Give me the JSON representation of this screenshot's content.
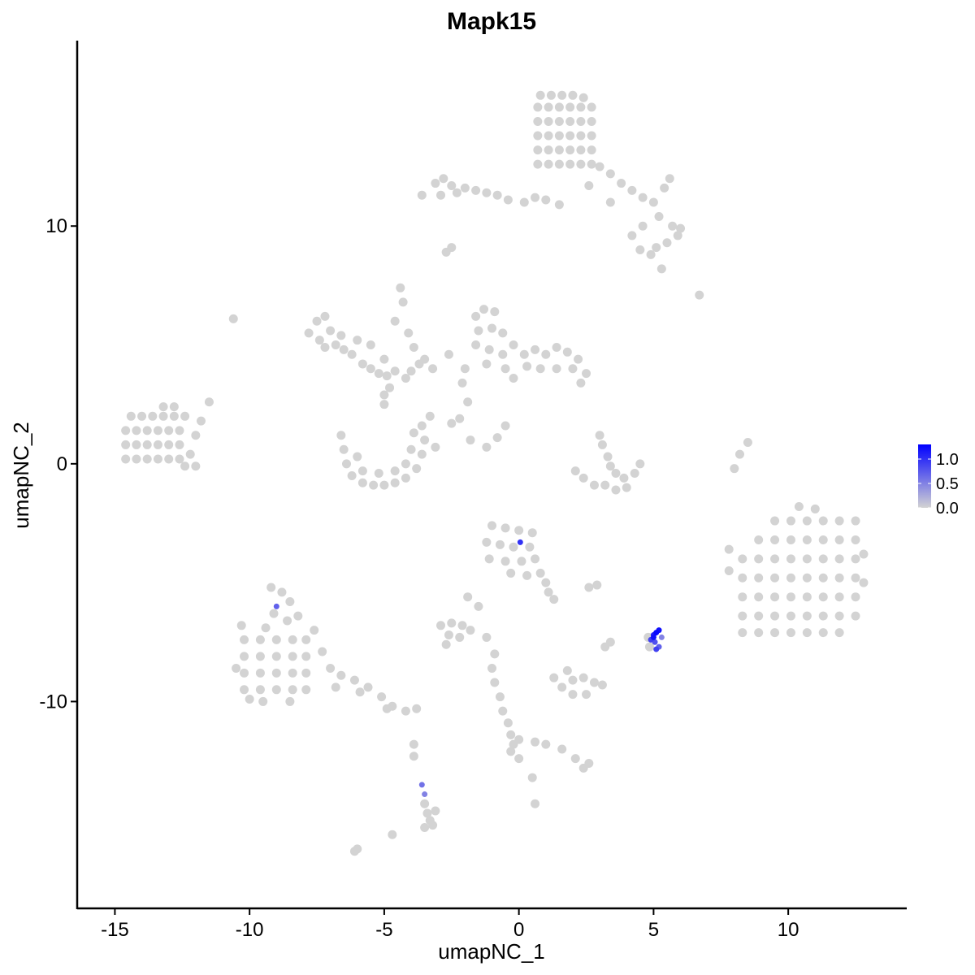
{
  "chart_data": {
    "type": "scatter",
    "title": "Mapk15",
    "xlabel": "umapNC_1",
    "ylabel": "umapNC_2",
    "xlim": [
      -16.4,
      14.4
    ],
    "ylim": [
      -18.7,
      17.8
    ],
    "xticks": [
      -15,
      -10,
      -5,
      0,
      5,
      10
    ],
    "yticks": [
      -10,
      0,
      10
    ],
    "grid": false,
    "color_scale": {
      "low": "#D3D3D3",
      "high": "#0000FF",
      "min": 0,
      "max": 1.3
    },
    "legend": {
      "position": "right",
      "ticks": [
        0.0,
        0.5,
        1.0
      ],
      "tick_labels": [
        "0.0",
        "0.5",
        "1.0"
      ]
    },
    "points_zero": [
      [
        0.7,
        12.6
      ],
      [
        1.1,
        12.6
      ],
      [
        1.5,
        12.6
      ],
      [
        1.9,
        12.6
      ],
      [
        2.3,
        12.6
      ],
      [
        2.7,
        12.6
      ],
      [
        0.7,
        13.2
      ],
      [
        1.1,
        13.2
      ],
      [
        1.5,
        13.2
      ],
      [
        1.9,
        13.2
      ],
      [
        2.3,
        13.2
      ],
      [
        2.7,
        13.2
      ],
      [
        0.7,
        13.8
      ],
      [
        1.1,
        13.8
      ],
      [
        1.5,
        13.8
      ],
      [
        1.9,
        13.8
      ],
      [
        2.3,
        13.8
      ],
      [
        2.7,
        13.8
      ],
      [
        0.7,
        14.4
      ],
      [
        1.1,
        14.4
      ],
      [
        1.5,
        14.4
      ],
      [
        1.9,
        14.4
      ],
      [
        2.3,
        14.4
      ],
      [
        2.7,
        14.4
      ],
      [
        0.7,
        15.0
      ],
      [
        1.1,
        15.0
      ],
      [
        1.5,
        15.0
      ],
      [
        1.9,
        15.0
      ],
      [
        2.3,
        15.0
      ],
      [
        2.7,
        15.0
      ],
      [
        0.8,
        15.5
      ],
      [
        1.2,
        15.5
      ],
      [
        1.6,
        15.5
      ],
      [
        2.0,
        15.5
      ],
      [
        2.4,
        15.4
      ],
      [
        3.0,
        12.5
      ],
      [
        3.4,
        12.2
      ],
      [
        3.8,
        11.8
      ],
      [
        4.2,
        11.5
      ],
      [
        4.6,
        11.2
      ],
      [
        5.0,
        11.0
      ],
      [
        5.4,
        11.6
      ],
      [
        5.6,
        12.0
      ],
      [
        5.2,
        10.4
      ],
      [
        4.6,
        10.0
      ],
      [
        4.2,
        9.6
      ],
      [
        4.5,
        9.0
      ],
      [
        4.9,
        8.8
      ],
      [
        5.7,
        10.0
      ],
      [
        5.9,
        9.6
      ],
      [
        6.0,
        9.9
      ],
      [
        5.5,
        9.3
      ],
      [
        5.1,
        9.1
      ],
      [
        3.4,
        11.0
      ],
      [
        2.6,
        11.7
      ],
      [
        5.3,
        8.2
      ],
      [
        6.7,
        7.1
      ],
      [
        -3.6,
        11.3
      ],
      [
        -3.1,
        11.8
      ],
      [
        -2.8,
        12.0
      ],
      [
        -2.5,
        11.7
      ],
      [
        -2.9,
        11.3
      ],
      [
        -2.3,
        11.4
      ],
      [
        -2.0,
        11.6
      ],
      [
        -1.6,
        11.5
      ],
      [
        -1.2,
        11.4
      ],
      [
        -0.8,
        11.3
      ],
      [
        -0.4,
        11.1
      ],
      [
        0.2,
        11.0
      ],
      [
        0.6,
        11.2
      ],
      [
        1.0,
        11.1
      ],
      [
        1.5,
        10.9
      ],
      [
        -2.7,
        8.9
      ],
      [
        -2.5,
        9.1
      ],
      [
        -14.6,
        0.2
      ],
      [
        -14.2,
        0.2
      ],
      [
        -13.8,
        0.2
      ],
      [
        -13.4,
        0.2
      ],
      [
        -13.0,
        0.2
      ],
      [
        -12.6,
        0.2
      ],
      [
        -14.6,
        0.8
      ],
      [
        -14.2,
        0.8
      ],
      [
        -13.8,
        0.8
      ],
      [
        -13.4,
        0.8
      ],
      [
        -13.0,
        0.8
      ],
      [
        -12.6,
        0.8
      ],
      [
        -14.6,
        1.4
      ],
      [
        -14.2,
        1.4
      ],
      [
        -13.8,
        1.4
      ],
      [
        -13.4,
        1.4
      ],
      [
        -13.0,
        1.4
      ],
      [
        -12.6,
        1.4
      ],
      [
        -14.4,
        2.0
      ],
      [
        -14.0,
        2.0
      ],
      [
        -13.6,
        2.0
      ],
      [
        -13.2,
        2.0
      ],
      [
        -12.8,
        2.0
      ],
      [
        -12.4,
        2.0
      ],
      [
        -13.2,
        2.4
      ],
      [
        -12.8,
        2.4
      ],
      [
        -12.4,
        -0.1
      ],
      [
        -12.0,
        -0.1
      ],
      [
        -12.2,
        0.4
      ],
      [
        -12.0,
        1.2
      ],
      [
        -11.8,
        1.8
      ],
      [
        -11.5,
        2.6
      ],
      [
        -10.6,
        6.1
      ],
      [
        -7.8,
        5.5
      ],
      [
        -7.5,
        6.0
      ],
      [
        -7.2,
        6.2
      ],
      [
        -7.4,
        5.2
      ],
      [
        -7.0,
        5.6
      ],
      [
        -6.8,
        5.0
      ],
      [
        -6.5,
        4.8
      ],
      [
        -6.6,
        5.4
      ],
      [
        -6.2,
        4.6
      ],
      [
        -5.8,
        4.2
      ],
      [
        -5.5,
        4.0
      ],
      [
        -5.2,
        3.8
      ],
      [
        -4.9,
        3.7
      ],
      [
        -4.6,
        3.9
      ],
      [
        -4.2,
        3.6
      ],
      [
        -4.0,
        3.9
      ],
      [
        -3.7,
        4.2
      ],
      [
        -3.5,
        4.4
      ],
      [
        -5.0,
        4.4
      ],
      [
        -5.5,
        5.0
      ],
      [
        -4.6,
        6.0
      ],
      [
        -4.4,
        7.4
      ],
      [
        -4.3,
        6.8
      ],
      [
        -4.1,
        5.5
      ],
      [
        -3.9,
        4.9
      ],
      [
        -7.2,
        4.9
      ],
      [
        -6.0,
        5.2
      ],
      [
        -6.6,
        1.2
      ],
      [
        -6.5,
        0.6
      ],
      [
        -6.4,
        0.0
      ],
      [
        -6.2,
        -0.5
      ],
      [
        -5.8,
        -0.8
      ],
      [
        -5.4,
        -0.9
      ],
      [
        -5.0,
        -0.9
      ],
      [
        -4.6,
        -0.8
      ],
      [
        -4.2,
        -0.6
      ],
      [
        -3.8,
        -0.2
      ],
      [
        -3.6,
        0.4
      ],
      [
        -3.5,
        1.0
      ],
      [
        -3.6,
        1.6
      ],
      [
        -5.8,
        -0.3
      ],
      [
        -5.2,
        -0.4
      ],
      [
        -4.6,
        -0.3
      ],
      [
        -4.2,
        0.0
      ],
      [
        -4.0,
        0.6
      ],
      [
        -6.0,
        0.3
      ],
      [
        -3.9,
        1.3
      ],
      [
        -5.0,
        2.5
      ],
      [
        -5.0,
        2.9
      ],
      [
        -4.8,
        3.2
      ],
      [
        -1.6,
        6.2
      ],
      [
        -1.3,
        6.5
      ],
      [
        -0.9,
        6.4
      ],
      [
        -1.5,
        5.6
      ],
      [
        -1.0,
        5.7
      ],
      [
        -0.6,
        5.5
      ],
      [
        -1.6,
        5.0
      ],
      [
        -1.1,
        4.8
      ],
      [
        -0.6,
        4.6
      ],
      [
        -0.2,
        5.0
      ],
      [
        0.2,
        4.6
      ],
      [
        0.6,
        4.8
      ],
      [
        1.0,
        4.6
      ],
      [
        1.4,
        4.9
      ],
      [
        1.8,
        4.7
      ],
      [
        2.2,
        4.4
      ],
      [
        2.5,
        3.8
      ],
      [
        2.0,
        4.0
      ],
      [
        1.4,
        4.0
      ],
      [
        0.8,
        4.0
      ],
      [
        0.3,
        4.1
      ],
      [
        -0.5,
        4.0
      ],
      [
        -1.2,
        4.2
      ],
      [
        -2.0,
        4.0
      ],
      [
        -2.1,
        3.4
      ],
      [
        -1.9,
        2.6
      ],
      [
        -2.2,
        1.9
      ],
      [
        -0.2,
        3.6
      ],
      [
        2.3,
        3.4
      ],
      [
        -2.6,
        4.6
      ],
      [
        -3.2,
        4.0
      ],
      [
        3.0,
        1.2
      ],
      [
        3.1,
        0.8
      ],
      [
        3.3,
        0.3
      ],
      [
        3.4,
        -0.1
      ],
      [
        3.6,
        -0.4
      ],
      [
        3.9,
        -0.6
      ],
      [
        4.3,
        -0.4
      ],
      [
        4.5,
        0.0
      ],
      [
        3.2,
        -0.9
      ],
      [
        2.8,
        -0.9
      ],
      [
        2.4,
        -0.6
      ],
      [
        2.1,
        -0.3
      ],
      [
        3.6,
        -1.1
      ],
      [
        4.0,
        -1.0
      ],
      [
        -0.8,
        1.1
      ],
      [
        -0.5,
        1.6
      ],
      [
        -2.5,
        1.7
      ],
      [
        -1.8,
        1.0
      ],
      [
        -1.2,
        0.7
      ],
      [
        8.0,
        -0.2
      ],
      [
        8.2,
        0.4
      ],
      [
        8.5,
        0.9
      ],
      [
        -3.1,
        0.7
      ],
      [
        -3.3,
        2.0
      ],
      [
        9.5,
        -2.4
      ],
      [
        10.1,
        -2.4
      ],
      [
        10.7,
        -2.4
      ],
      [
        11.3,
        -2.4
      ],
      [
        11.9,
        -2.4
      ],
      [
        12.5,
        -2.4
      ],
      [
        8.9,
        -3.2
      ],
      [
        9.5,
        -3.2
      ],
      [
        10.1,
        -3.2
      ],
      [
        10.7,
        -3.2
      ],
      [
        11.3,
        -3.2
      ],
      [
        11.9,
        -3.2
      ],
      [
        12.5,
        -3.2
      ],
      [
        8.3,
        -4.0
      ],
      [
        8.9,
        -4.0
      ],
      [
        9.5,
        -4.0
      ],
      [
        10.1,
        -4.0
      ],
      [
        10.7,
        -4.0
      ],
      [
        11.3,
        -4.0
      ],
      [
        11.9,
        -4.0
      ],
      [
        12.5,
        -4.0
      ],
      [
        8.3,
        -4.8
      ],
      [
        8.9,
        -4.8
      ],
      [
        9.5,
        -4.8
      ],
      [
        10.1,
        -4.8
      ],
      [
        10.7,
        -4.8
      ],
      [
        11.3,
        -4.8
      ],
      [
        11.9,
        -4.8
      ],
      [
        12.5,
        -4.8
      ],
      [
        8.3,
        -5.6
      ],
      [
        8.9,
        -5.6
      ],
      [
        9.5,
        -5.6
      ],
      [
        10.1,
        -5.6
      ],
      [
        10.7,
        -5.6
      ],
      [
        11.3,
        -5.6
      ],
      [
        11.9,
        -5.6
      ],
      [
        12.5,
        -5.6
      ],
      [
        8.3,
        -6.4
      ],
      [
        8.9,
        -6.4
      ],
      [
        9.5,
        -6.4
      ],
      [
        10.1,
        -6.4
      ],
      [
        10.7,
        -6.4
      ],
      [
        11.3,
        -6.4
      ],
      [
        11.9,
        -6.4
      ],
      [
        12.5,
        -6.4
      ],
      [
        8.3,
        -7.1
      ],
      [
        8.9,
        -7.1
      ],
      [
        9.5,
        -7.1
      ],
      [
        10.1,
        -7.1
      ],
      [
        10.7,
        -7.1
      ],
      [
        11.3,
        -7.1
      ],
      [
        11.9,
        -7.1
      ],
      [
        7.8,
        -3.6
      ],
      [
        7.8,
        -4.5
      ],
      [
        12.8,
        -3.8
      ],
      [
        12.8,
        -5.0
      ],
      [
        10.4,
        -1.8
      ],
      [
        11.0,
        -1.9
      ],
      [
        -1.0,
        -2.6
      ],
      [
        -0.5,
        -2.7
      ],
      [
        0.0,
        -2.8
      ],
      [
        0.5,
        -2.9
      ],
      [
        -1.2,
        -3.3
      ],
      [
        -0.7,
        -3.4
      ],
      [
        -0.2,
        -3.5
      ],
      [
        0.4,
        -3.5
      ],
      [
        -1.1,
        -4.0
      ],
      [
        -0.5,
        -4.1
      ],
      [
        0.1,
        -4.1
      ],
      [
        0.6,
        -4.0
      ],
      [
        -0.3,
        -4.6
      ],
      [
        0.3,
        -4.7
      ],
      [
        0.8,
        -4.6
      ],
      [
        1.0,
        -5.0
      ],
      [
        1.1,
        -5.4
      ],
      [
        1.3,
        -5.7
      ],
      [
        -10.2,
        -7.4
      ],
      [
        -9.6,
        -7.4
      ],
      [
        -9.0,
        -7.4
      ],
      [
        -8.4,
        -7.4
      ],
      [
        -7.9,
        -7.4
      ],
      [
        -10.2,
        -8.1
      ],
      [
        -9.6,
        -8.1
      ],
      [
        -9.0,
        -8.1
      ],
      [
        -8.4,
        -8.1
      ],
      [
        -7.9,
        -8.1
      ],
      [
        -10.2,
        -8.8
      ],
      [
        -9.6,
        -8.8
      ],
      [
        -9.0,
        -8.8
      ],
      [
        -8.4,
        -8.8
      ],
      [
        -7.9,
        -8.8
      ],
      [
        -10.2,
        -9.5
      ],
      [
        -9.6,
        -9.5
      ],
      [
        -9.0,
        -9.5
      ],
      [
        -8.4,
        -9.5
      ],
      [
        -7.9,
        -9.5
      ],
      [
        -9.2,
        -5.2
      ],
      [
        -8.8,
        -5.4
      ],
      [
        -8.5,
        -5.8
      ],
      [
        -9.1,
        -6.3
      ],
      [
        -8.6,
        -6.6
      ],
      [
        -9.4,
        -6.9
      ],
      [
        -8.2,
        -6.4
      ],
      [
        -7.6,
        -7.0
      ],
      [
        -7.3,
        -7.9
      ],
      [
        -7.0,
        -8.6
      ],
      [
        -6.6,
        -8.9
      ],
      [
        -6.1,
        -9.1
      ],
      [
        -5.6,
        -9.4
      ],
      [
        -5.1,
        -9.8
      ],
      [
        -4.7,
        -10.2
      ],
      [
        -4.2,
        -10.4
      ],
      [
        -3.8,
        -10.3
      ],
      [
        -6.8,
        -9.4
      ],
      [
        -5.9,
        -9.6
      ],
      [
        -4.9,
        -10.3
      ],
      [
        -10.5,
        -8.6
      ],
      [
        -10.0,
        -9.9
      ],
      [
        -9.5,
        -10.0
      ],
      [
        -8.5,
        -10.0
      ],
      [
        -10.3,
        -6.8
      ],
      [
        -2.9,
        -6.8
      ],
      [
        -2.5,
        -6.7
      ],
      [
        -2.1,
        -6.8
      ],
      [
        -1.8,
        -7.0
      ],
      [
        -2.6,
        -7.2
      ],
      [
        -2.2,
        -7.3
      ],
      [
        -2.7,
        -7.6
      ],
      [
        -1.2,
        -7.3
      ],
      [
        -1.5,
        -6.0
      ],
      [
        -1.9,
        -5.6
      ],
      [
        2.6,
        -5.2
      ],
      [
        2.9,
        -5.1
      ],
      [
        1.6,
        -9.4
      ],
      [
        2.0,
        -9.1
      ],
      [
        2.4,
        -9.0
      ],
      [
        2.8,
        -9.2
      ],
      [
        3.1,
        -9.3
      ],
      [
        2.0,
        -9.7
      ],
      [
        2.5,
        -9.7
      ],
      [
        1.3,
        -9.0
      ],
      [
        1.8,
        -8.7
      ],
      [
        3.2,
        -7.7
      ],
      [
        3.4,
        -7.5
      ],
      [
        -1.0,
        -8.6
      ],
      [
        -0.9,
        -9.2
      ],
      [
        -0.7,
        -9.8
      ],
      [
        -0.6,
        -10.4
      ],
      [
        -0.4,
        -10.9
      ],
      [
        -0.3,
        -11.4
      ],
      [
        -0.2,
        -11.8
      ],
      [
        0.0,
        -11.6
      ],
      [
        -0.3,
        -12.1
      ],
      [
        0.0,
        -12.4
      ],
      [
        0.6,
        -11.7
      ],
      [
        1.0,
        -11.8
      ],
      [
        1.6,
        -12.0
      ],
      [
        2.1,
        -12.4
      ],
      [
        2.4,
        -12.8
      ],
      [
        2.6,
        -12.6
      ],
      [
        -0.9,
        -8.0
      ],
      [
        0.5,
        -13.2
      ],
      [
        0.6,
        -14.3
      ],
      [
        -3.9,
        -11.8
      ],
      [
        -3.9,
        -12.3
      ],
      [
        -3.5,
        -14.3
      ],
      [
        -3.4,
        -14.7
      ],
      [
        -3.3,
        -15.0
      ],
      [
        -3.5,
        -15.3
      ],
      [
        -3.2,
        -15.2
      ],
      [
        -3.1,
        -14.6
      ],
      [
        -4.7,
        -15.6
      ],
      [
        -6.0,
        -16.2
      ],
      [
        -6.1,
        -16.3
      ],
      [
        4.8,
        -7.3
      ],
      [
        4.85,
        -7.7
      ]
    ],
    "points_expressed": [
      [
        5.3,
        -7.3,
        0.5
      ],
      [
        5.2,
        -7.7,
        0.7
      ],
      [
        -3.5,
        -13.9,
        0.5
      ],
      [
        -3.6,
        -13.5,
        0.6
      ],
      [
        -9.0,
        -6.0,
        0.7
      ],
      [
        5.05,
        -7.5,
        0.8
      ],
      [
        4.9,
        -7.4,
        0.9
      ],
      [
        5.1,
        -7.8,
        0.9
      ],
      [
        0.05,
        -3.3,
        1.0
      ],
      [
        5.0,
        -7.2,
        1.1
      ],
      [
        5.2,
        -7.0,
        1.2
      ],
      [
        5.0,
        -7.3,
        1.2
      ],
      [
        5.1,
        -7.1,
        1.25
      ]
    ]
  }
}
